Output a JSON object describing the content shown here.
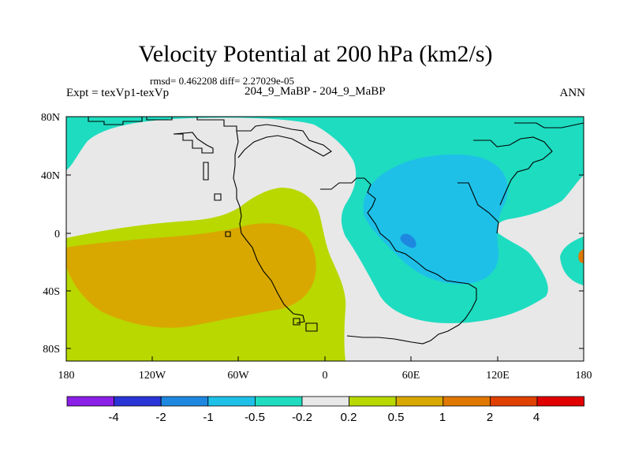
{
  "header": {
    "title": "Velocity Potential at 200 hPa (km2/s)",
    "stats": "rmsd= 0.462208 diff= 2.27029e-05",
    "experiment": "Expt = texVp1-texVp",
    "cases": "204_9_MaBP - 204_9_MaBP",
    "season": "ANN"
  },
  "map": {
    "lat_labels": [
      "80N",
      "40N",
      "0",
      "40S",
      "80S"
    ],
    "lon_labels": [
      "180",
      "120W",
      "60W",
      "0",
      "60E",
      "120E",
      "180"
    ]
  },
  "colorbar": {
    "colors": [
      "#8a1fe6",
      "#2a35d8",
      "#1e88e0",
      "#1ec0e8",
      "#1edcc0",
      "#e8e8e8",
      "#b8d800",
      "#d8a800",
      "#e07800",
      "#e04000",
      "#e00000"
    ],
    "labels": [
      "-4",
      "-2",
      "-1",
      "-0.5",
      "-0.2",
      "0.2",
      "0.5",
      "1",
      "2",
      "4"
    ]
  },
  "fill_colors": {
    "neutral": "#e8e8e8",
    "pos_weak": "#b8d800",
    "pos_mid": "#d8a800",
    "pos_strong": "#e07800",
    "neg_weak": "#1edcc0",
    "neg_mid": "#1ec0e8",
    "neg_strong": "#1e88e0"
  }
}
